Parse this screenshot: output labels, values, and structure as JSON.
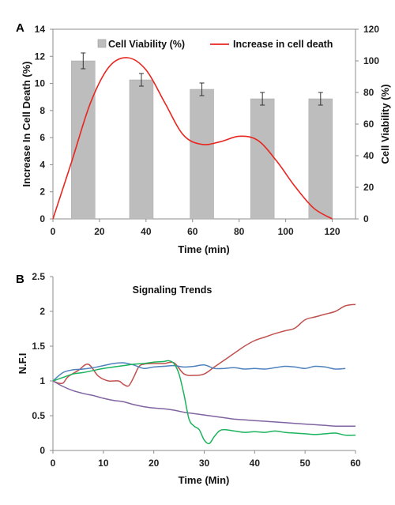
{
  "panels": {
    "a": "A",
    "b": "B"
  },
  "chart_data": [
    {
      "type": "bar",
      "panel": "A",
      "xlabel": "Time (min)",
      "ylabel_left": "Increase In Cell Death (%)",
      "ylabel_right": "Cell Viability (%)",
      "xlim": [
        0,
        130
      ],
      "xticks": [
        0,
        20,
        40,
        60,
        80,
        100,
        120
      ],
      "ylim_left": [
        0,
        14
      ],
      "yticks_left": [
        0,
        2,
        4,
        6,
        8,
        10,
        12,
        14
      ],
      "ylim_right": [
        0,
        120
      ],
      "yticks_right": [
        0,
        20,
        40,
        60,
        80,
        100,
        120
      ],
      "legend_position": "top-center",
      "bars": {
        "name": "Cell Viability (%)",
        "color": "#bdbdbd",
        "x": [
          13,
          38,
          64,
          90,
          115
        ],
        "values": [
          100,
          88,
          82,
          76,
          76
        ],
        "errors": [
          5,
          4,
          4,
          4,
          4
        ],
        "axis": "right"
      },
      "curve": {
        "name": "Increase in cell death",
        "color": "#e8251f",
        "x": [
          0,
          8,
          16,
          24,
          32,
          40,
          48,
          56,
          64,
          72,
          80,
          88,
          96,
          104,
          112,
          120
        ],
        "y": [
          0,
          4.2,
          8.5,
          11.2,
          11.9,
          11.0,
          8.6,
          6.2,
          5.5,
          5.7,
          6.1,
          5.8,
          4.3,
          2.4,
          0.8,
          0
        ],
        "axis": "left"
      }
    },
    {
      "type": "line",
      "panel": "B",
      "title": "Signaling Trends",
      "xlabel": "Time (Min)",
      "ylabel": "N.F.I",
      "xlim": [
        0,
        60
      ],
      "xticks": [
        0,
        10,
        20,
        30,
        40,
        50,
        60
      ],
      "ylim": [
        0,
        2.5
      ],
      "yticks": [
        0,
        0.5,
        1,
        1.5,
        2,
        2.5
      ],
      "series": [
        {
          "color": "#c0504d",
          "x": [
            0,
            1,
            2,
            3,
            5,
            7,
            9,
            11,
            13,
            14,
            15,
            16,
            17,
            18,
            20,
            22,
            24,
            26,
            28,
            30,
            32,
            34,
            36,
            38,
            40,
            42,
            44,
            46,
            48,
            50,
            52,
            54,
            56,
            58,
            60
          ],
          "y": [
            1.0,
            0.97,
            0.97,
            1.06,
            1.15,
            1.24,
            1.07,
            1.0,
            1.0,
            0.95,
            0.93,
            1.05,
            1.2,
            1.24,
            1.25,
            1.25,
            1.26,
            1.1,
            1.08,
            1.1,
            1.2,
            1.3,
            1.4,
            1.5,
            1.58,
            1.63,
            1.68,
            1.72,
            1.76,
            1.88,
            1.92,
            1.96,
            2.0,
            2.08,
            2.1
          ]
        },
        {
          "color": "#4f81bd",
          "x": [
            0,
            2,
            4,
            6,
            8,
            10,
            12,
            14,
            16,
            18,
            20,
            22,
            24,
            26,
            28,
            30,
            32,
            34,
            36,
            38,
            40,
            42,
            44,
            46,
            48,
            50,
            52,
            54,
            56,
            58
          ],
          "y": [
            1.0,
            1.12,
            1.16,
            1.17,
            1.19,
            1.22,
            1.25,
            1.26,
            1.23,
            1.18,
            1.2,
            1.21,
            1.22,
            1.2,
            1.21,
            1.23,
            1.18,
            1.18,
            1.19,
            1.17,
            1.18,
            1.17,
            1.19,
            1.21,
            1.2,
            1.18,
            1.21,
            1.2,
            1.17,
            1.18
          ]
        },
        {
          "color": "#8064a2",
          "x": [
            0,
            2,
            4,
            6,
            8,
            10,
            12,
            14,
            16,
            18,
            20,
            22,
            24,
            26,
            28,
            30,
            32,
            34,
            36,
            38,
            40,
            42,
            44,
            46,
            48,
            50,
            52,
            54,
            56,
            58,
            60
          ],
          "y": [
            1.0,
            0.92,
            0.86,
            0.82,
            0.79,
            0.75,
            0.72,
            0.7,
            0.66,
            0.63,
            0.61,
            0.6,
            0.58,
            0.55,
            0.53,
            0.51,
            0.49,
            0.47,
            0.45,
            0.44,
            0.43,
            0.42,
            0.41,
            0.4,
            0.39,
            0.38,
            0.37,
            0.36,
            0.35,
            0.35,
            0.35
          ]
        },
        {
          "color": "#1bb35c",
          "x": [
            0,
            2,
            4,
            6,
            8,
            10,
            12,
            14,
            16,
            18,
            20,
            22,
            23,
            24,
            25,
            26,
            27,
            28,
            29,
            30,
            31,
            32,
            33,
            34,
            36,
            38,
            40,
            42,
            44,
            46,
            48,
            50,
            52,
            54,
            56,
            58,
            60
          ],
          "y": [
            1.0,
            1.05,
            1.1,
            1.12,
            1.15,
            1.18,
            1.2,
            1.22,
            1.24,
            1.25,
            1.27,
            1.28,
            1.29,
            1.25,
            1.1,
            0.8,
            0.45,
            0.35,
            0.3,
            0.15,
            0.1,
            0.2,
            0.28,
            0.3,
            0.28,
            0.26,
            0.27,
            0.26,
            0.28,
            0.26,
            0.25,
            0.24,
            0.23,
            0.24,
            0.25,
            0.22,
            0.22
          ]
        }
      ]
    }
  ]
}
